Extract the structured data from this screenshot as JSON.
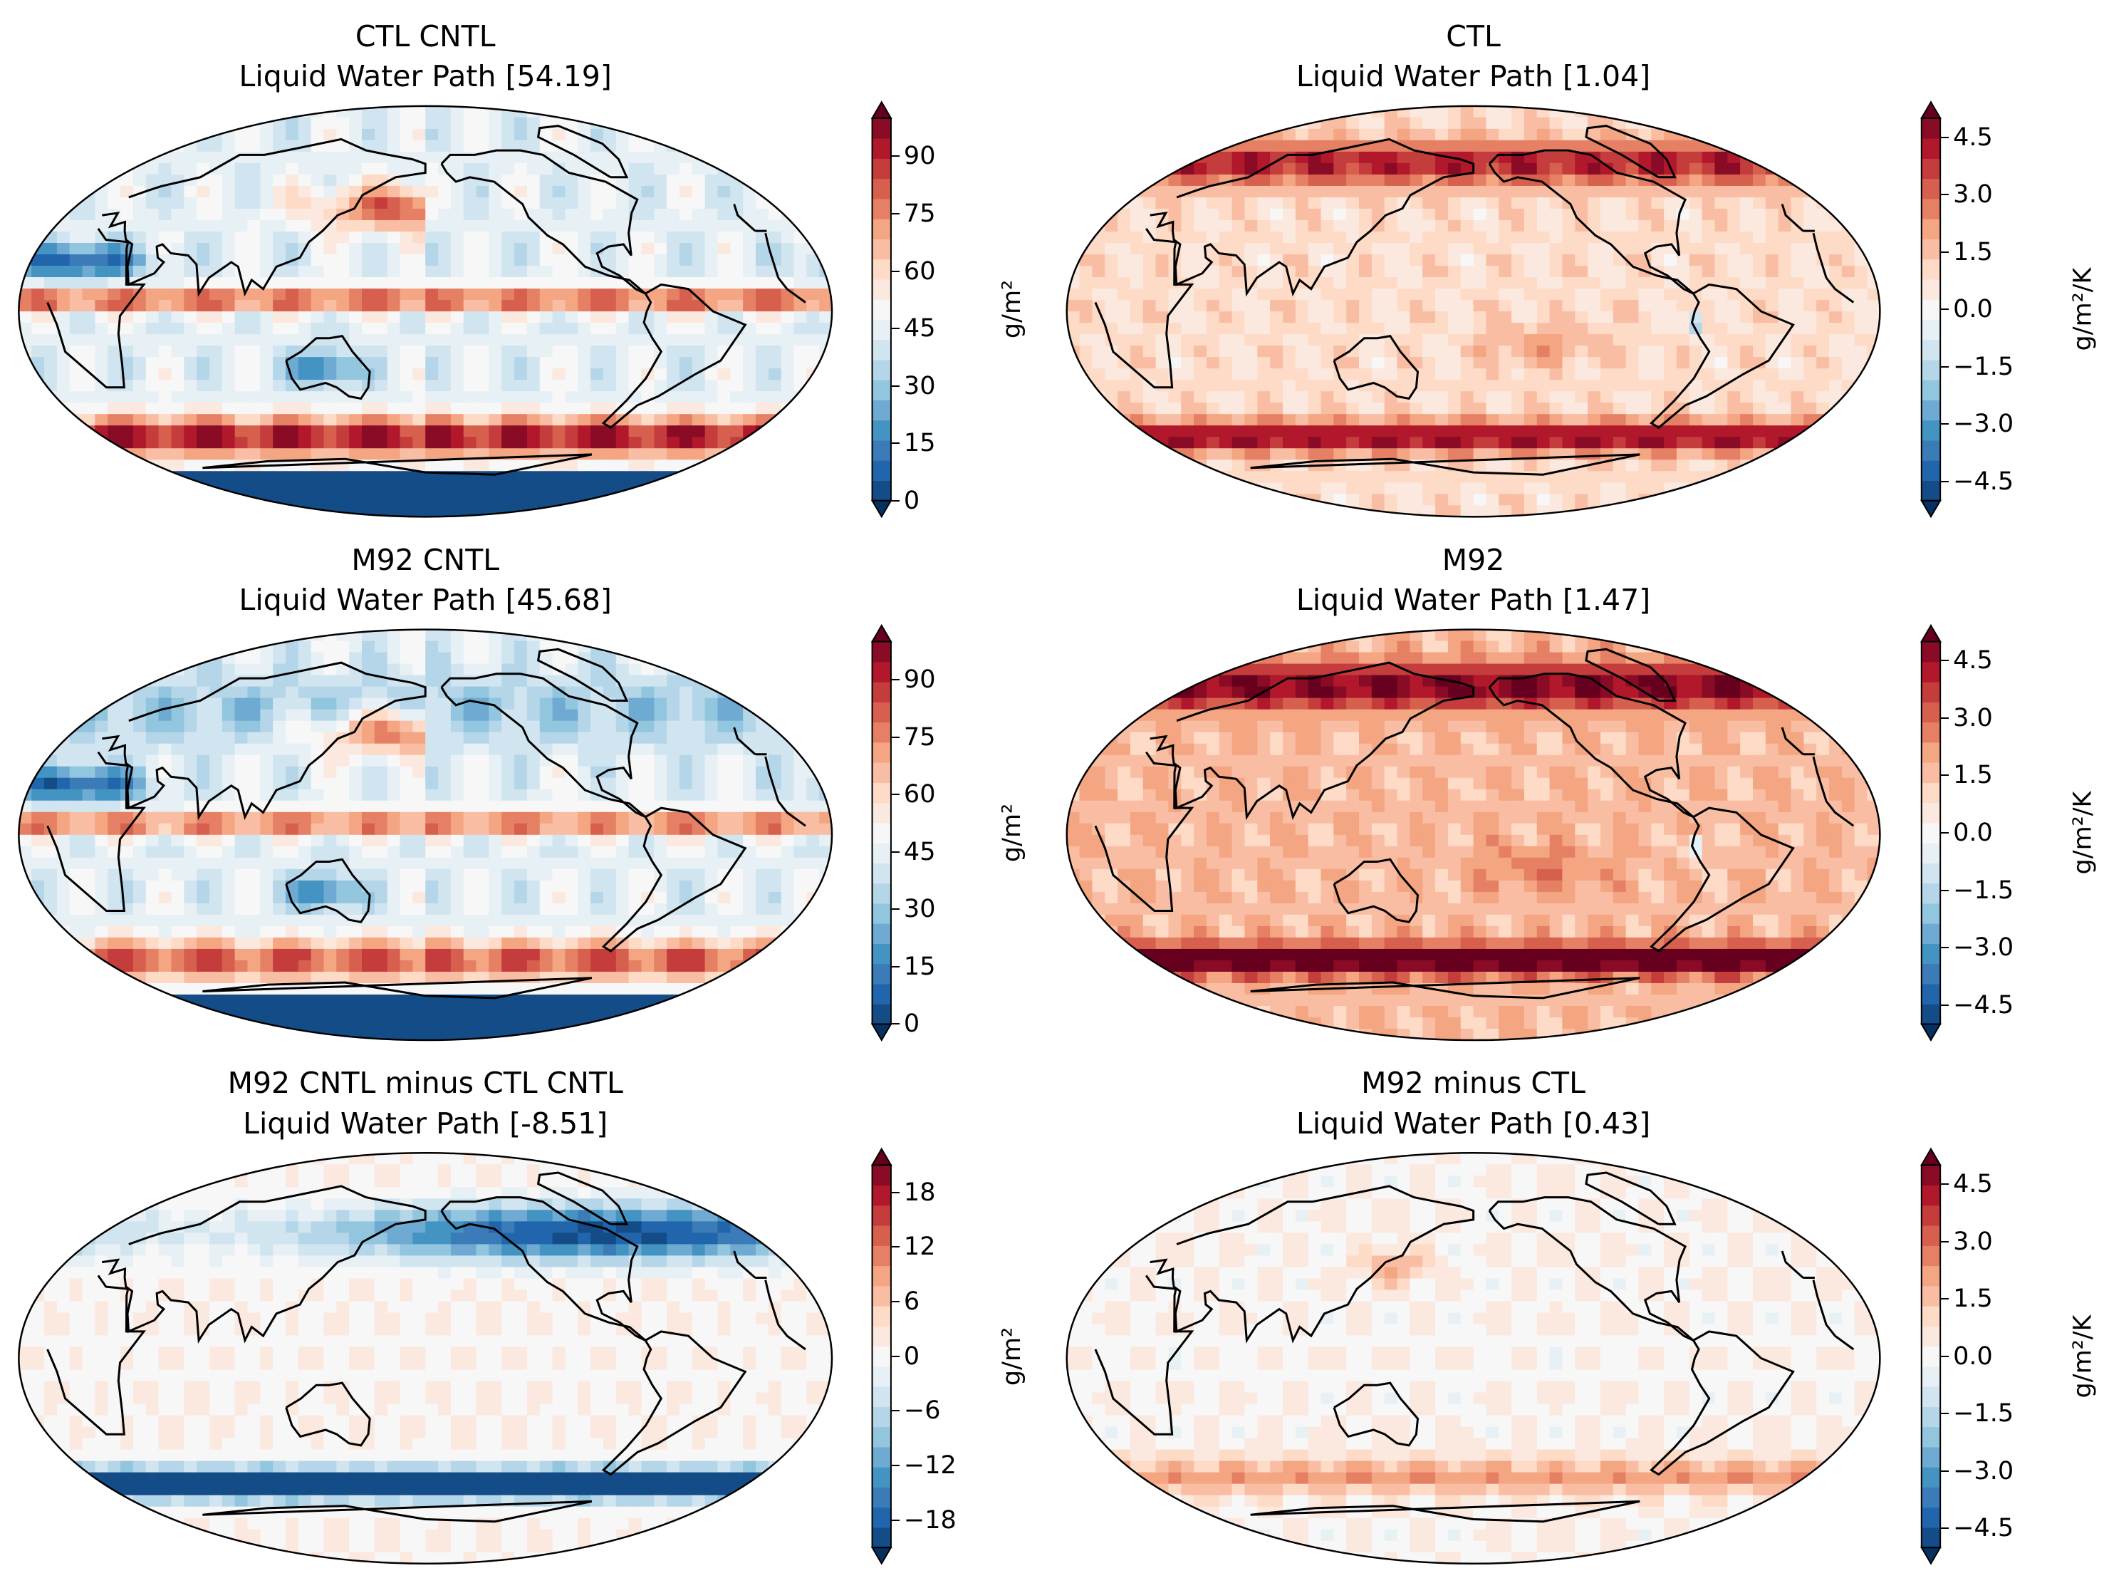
{
  "chart_data": [
    {
      "type": "heatmap",
      "id": "p1",
      "title_line1": "CTL CNTL",
      "title_line2": "Liquid Water Path [54.19]",
      "colormap": "RdBu_r",
      "colorbar": {
        "ticks": [
          "0",
          "15",
          "30",
          "45",
          "60",
          "75",
          "90"
        ],
        "range": [
          0,
          100
        ],
        "unit": "g/m²",
        "extend": "both"
      },
      "projection": "Robinson (Pacific-centered)"
    },
    {
      "type": "heatmap",
      "id": "p2",
      "title_line1": "CTL",
      "title_line2": "Liquid Water Path [1.04]",
      "colormap": "RdBu_r",
      "colorbar": {
        "ticks": [
          "−4.5",
          "−3.0",
          "−1.5",
          "0.0",
          "1.5",
          "3.0",
          "4.5"
        ],
        "range": [
          -5,
          5
        ],
        "unit": "g/m²/K",
        "extend": "both"
      },
      "projection": "Robinson (Pacific-centered)"
    },
    {
      "type": "heatmap",
      "id": "p3",
      "title_line1": "M92 CNTL",
      "title_line2": "Liquid Water Path [45.68]",
      "colormap": "RdBu_r",
      "colorbar": {
        "ticks": [
          "0",
          "15",
          "30",
          "45",
          "60",
          "75",
          "90"
        ],
        "range": [
          0,
          100
        ],
        "unit": "g/m²",
        "extend": "both"
      },
      "projection": "Robinson (Pacific-centered)"
    },
    {
      "type": "heatmap",
      "id": "p4",
      "title_line1": "M92",
      "title_line2": "Liquid Water Path [1.47]",
      "colormap": "RdBu_r",
      "colorbar": {
        "ticks": [
          "−4.5",
          "−3.0",
          "−1.5",
          "0.0",
          "1.5",
          "3.0",
          "4.5"
        ],
        "range": [
          -5,
          5
        ],
        "unit": "g/m²/K",
        "extend": "both"
      },
      "projection": "Robinson (Pacific-centered)"
    },
    {
      "type": "heatmap",
      "id": "p5",
      "title_line1": "M92 CNTL minus CTL CNTL",
      "title_line2": "Liquid Water Path [-8.51]",
      "colormap": "RdBu_r",
      "colorbar": {
        "ticks": [
          "−18",
          "−12",
          "−6",
          "0",
          "6",
          "12",
          "18"
        ],
        "range": [
          -21,
          21
        ],
        "unit": "g/m²",
        "extend": "both"
      },
      "projection": "Robinson (Pacific-centered)"
    },
    {
      "type": "heatmap",
      "id": "p6",
      "title_line1": "M92 minus CTL",
      "title_line2": "Liquid Water Path [0.43]",
      "colormap": "RdBu_r",
      "colorbar": {
        "ticks": [
          "−4.5",
          "−3.0",
          "−1.5",
          "0.0",
          "1.5",
          "3.0",
          "4.5"
        ],
        "range": [
          -5,
          5
        ],
        "unit": "g/m²/K",
        "extend": "both"
      },
      "projection": "Robinson (Pacific-centered)"
    }
  ]
}
